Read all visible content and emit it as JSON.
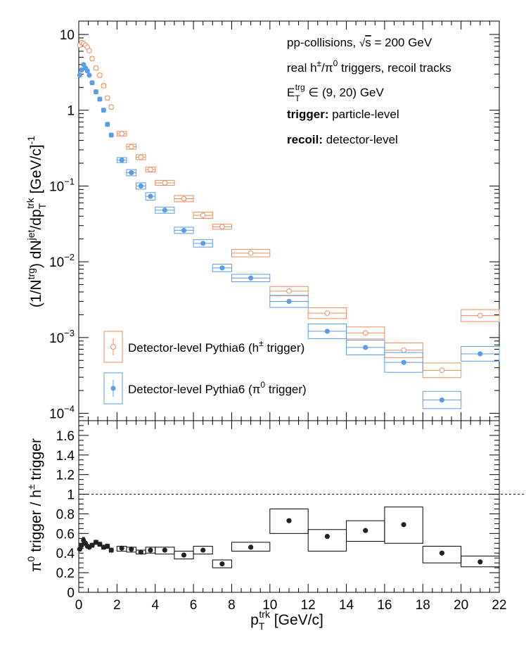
{
  "chart_data": [
    {
      "type": "scatter",
      "panel": "top",
      "ylabel": "(1/N^trg) dN^jet/dp_T^trk [GeV/c]^-1",
      "yscale": "log",
      "ylim": [
        8e-05,
        15
      ],
      "xlim": [
        0,
        22
      ],
      "y_tick_labels": [
        "10",
        "1",
        "10^-1",
        "10^-2",
        "10^-3",
        "10^-4"
      ],
      "annotations": [
        "pp-collisions, √s = 200 GeV",
        "real h±/π0 triggers, recoil tracks",
        "E_T^trg ∈ (9, 20) GeV",
        "trigger: particle-level",
        "recoil: detector-level"
      ],
      "legend": {
        "placement": "bottom-left",
        "entries": [
          "Detector-level Pythia6 (h± trigger)",
          "Detector-level Pythia6 (π0 trigger)"
        ]
      },
      "series": [
        {
          "name": "Detector-level Pythia6 (h± trigger)",
          "color": "#f08a5d",
          "marker": "open-circle",
          "x": [
            0.05,
            0.15,
            0.25,
            0.35,
            0.45,
            0.55,
            0.7,
            0.9,
            1.1,
            1.3,
            1.5,
            1.7,
            2.25,
            2.75,
            3.25,
            3.75,
            4.5,
            5.5,
            6.5,
            7.5,
            9,
            11,
            13,
            15,
            17,
            19,
            21
          ],
          "xerr": [
            0.05,
            0.05,
            0.05,
            0.05,
            0.05,
            0.05,
            0.1,
            0.1,
            0.1,
            0.1,
            0.1,
            0.1,
            0.25,
            0.25,
            0.25,
            0.25,
            0.5,
            0.5,
            0.5,
            0.5,
            1,
            1,
            1,
            1,
            1,
            1,
            1
          ],
          "y": [
            7.2,
            7.8,
            7.6,
            7.2,
            6.8,
            6.1,
            4.8,
            3.6,
            2.9,
            2.1,
            1.45,
            1.1,
            0.49,
            0.33,
            0.24,
            0.165,
            0.11,
            0.068,
            0.041,
            0.029,
            0.013,
            0.0041,
            0.0021,
            0.00115,
            0.00068,
            0.00037,
            0.00195
          ],
          "syst_height": [
            0.06,
            0.06,
            0.06,
            0.06,
            0.06,
            0.06,
            0.06,
            0.06,
            0.06,
            0.06,
            0.06,
            0.06,
            0.07,
            0.08,
            0.08,
            0.08,
            0.08,
            0.1,
            0.1,
            0.08,
            0.12,
            0.15,
            0.18,
            0.2,
            0.25,
            0.25,
            0.2
          ]
        },
        {
          "name": "Detector-level Pythia6 (π0 trigger)",
          "color": "#5a9bea",
          "marker": "filled-circle",
          "x": [
            0.05,
            0.15,
            0.25,
            0.35,
            0.45,
            0.55,
            0.7,
            0.9,
            1.1,
            1.3,
            1.5,
            1.7,
            2.25,
            2.75,
            3.25,
            3.75,
            4.5,
            5.5,
            6.5,
            7.5,
            9,
            11,
            13,
            15,
            17,
            19,
            21
          ],
          "xerr": [
            0.05,
            0.05,
            0.05,
            0.05,
            0.05,
            0.05,
            0.1,
            0.1,
            0.1,
            0.1,
            0.1,
            0.1,
            0.25,
            0.25,
            0.25,
            0.25,
            0.5,
            0.5,
            0.5,
            0.5,
            1,
            1,
            1,
            1,
            1,
            1,
            1
          ],
          "y": [
            2.9,
            3.4,
            4.0,
            3.6,
            3.3,
            2.9,
            2.3,
            1.75,
            1.4,
            1.0,
            0.65,
            0.47,
            0.22,
            0.15,
            0.1,
            0.073,
            0.048,
            0.026,
            0.0175,
            0.0083,
            0.0061,
            0.003,
            0.00121,
            0.00074,
            0.00047,
            0.00015,
            0.00061
          ],
          "syst_height": [
            0.06,
            0.06,
            0.06,
            0.06,
            0.06,
            0.06,
            0.06,
            0.06,
            0.06,
            0.06,
            0.06,
            0.06,
            0.08,
            0.1,
            0.1,
            0.12,
            0.1,
            0.1,
            0.12,
            0.12,
            0.12,
            0.2,
            0.25,
            0.25,
            0.35,
            0.3,
            0.25
          ]
        }
      ]
    },
    {
      "type": "scatter",
      "panel": "bottom",
      "xlabel": "p_T^trk [GeV/c]",
      "ylabel": "π0 trigger / h± trigger",
      "xlim": [
        0,
        22
      ],
      "ylim": [
        0,
        1.75
      ],
      "x_ticks": [
        0,
        2,
        4,
        6,
        8,
        10,
        12,
        14,
        16,
        18,
        20,
        22
      ],
      "y_ticks": [
        0,
        0.2,
        0.4,
        0.6,
        0.8,
        1,
        1.2,
        1.4,
        1.6
      ],
      "reference_line": 1,
      "series": [
        {
          "name": "ratio",
          "color": "#222222",
          "marker": "filled-circle",
          "x": [
            0.05,
            0.15,
            0.25,
            0.35,
            0.45,
            0.55,
            0.7,
            0.9,
            1.1,
            1.3,
            1.5,
            1.7,
            2.25,
            2.75,
            3.25,
            3.75,
            4.5,
            5.5,
            6.5,
            7.5,
            9,
            11,
            13,
            15,
            17,
            19,
            21
          ],
          "xerr": [
            0.05,
            0.05,
            0.05,
            0.05,
            0.05,
            0.05,
            0.1,
            0.1,
            0.1,
            0.1,
            0.1,
            0.1,
            0.25,
            0.25,
            0.25,
            0.25,
            0.5,
            0.5,
            0.5,
            0.5,
            1,
            1,
            1,
            1,
            1,
            1,
            1
          ],
          "y": [
            0.44,
            0.48,
            0.53,
            0.5,
            0.47,
            0.46,
            0.48,
            0.51,
            0.49,
            0.46,
            0.47,
            0.43,
            0.45,
            0.44,
            0.41,
            0.43,
            0.43,
            0.38,
            0.43,
            0.29,
            0.46,
            0.73,
            0.57,
            0.63,
            0.69,
            0.4,
            0.31
          ],
          "syst_low": [
            0.42,
            0.46,
            0.5,
            0.48,
            0.45,
            0.44,
            0.46,
            0.49,
            0.47,
            0.44,
            0.45,
            0.41,
            0.42,
            0.41,
            0.39,
            0.4,
            0.39,
            0.34,
            0.39,
            0.25,
            0.42,
            0.6,
            0.42,
            0.52,
            0.5,
            0.3,
            0.26
          ],
          "syst_high": [
            0.46,
            0.5,
            0.56,
            0.52,
            0.49,
            0.48,
            0.5,
            0.53,
            0.51,
            0.48,
            0.49,
            0.45,
            0.47,
            0.46,
            0.43,
            0.46,
            0.46,
            0.42,
            0.47,
            0.33,
            0.51,
            0.85,
            0.64,
            0.73,
            0.87,
            0.47,
            0.37
          ]
        }
      ]
    }
  ]
}
